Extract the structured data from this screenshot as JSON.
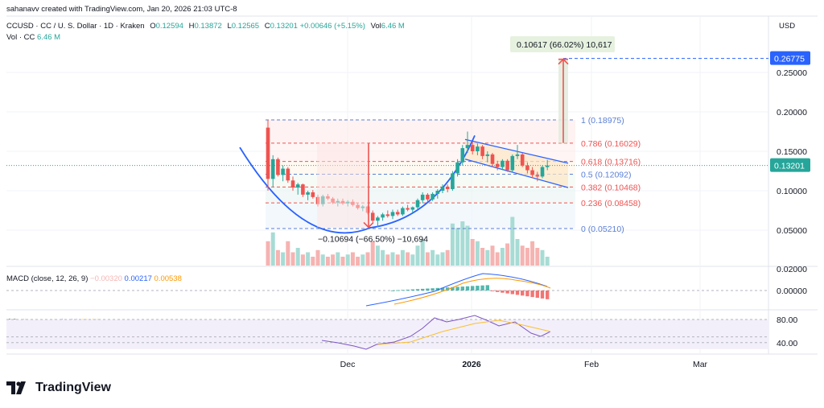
{
  "header": {
    "credit": "sahanavv created with TradingView.com, Jan 20, 2026 21:03 UTC-8",
    "symbol": "CCUSD · CC / U. S. Dollar · 1D · Kraken",
    "o_label": "O",
    "o_value": "0.12594",
    "h_label": "H",
    "h_value": "0.13872",
    "l_label": "L",
    "l_value": "0.12565",
    "c_label": "C",
    "c_value": "0.13201",
    "change": "+0.00646 (+5.15%)",
    "vol_label": "Vol",
    "vol_value": "6.46 M",
    "vol_row_label": "Vol · CC",
    "vol_row_value": "6.46 M",
    "currency": "USD"
  },
  "colors": {
    "up": "#26a69a",
    "down": "#ef5350",
    "curve": "#2962ff",
    "fib_red": "#ef5350",
    "fib_blue": "#5b7fd4",
    "target": "#2962ff",
    "macd": "#2962ff",
    "signal": "#ff9800",
    "rsi": "#7e57c2",
    "rsi_ma": "#fbc02d"
  },
  "chart_data": {
    "type": "candlestick",
    "x_axis": [
      "Dec",
      "2026",
      "Feb",
      "Mar"
    ],
    "y_axis": [
      "0.05000",
      "0.10000",
      "0.15000",
      "0.20000",
      "0.25000"
    ],
    "price_scale": [
      0.05,
      0.25
    ],
    "last_price": "0.13201",
    "target_price": "0.26775",
    "fib_levels": [
      {
        "label": "1 (0.18975)",
        "value": 0.18975
      },
      {
        "label": "0.786 (0.16029)",
        "value": 0.16029
      },
      {
        "label": "0.618 (0.13716)",
        "value": 0.13716
      },
      {
        "label": "0.5 (0.12092)",
        "value": 0.12092
      },
      {
        "label": "0.382 (0.10468)",
        "value": 0.10468
      },
      {
        "label": "0.236 (0.08458)",
        "value": 0.08458
      },
      {
        "label": "0 (0.05210)",
        "value": 0.0521
      }
    ],
    "measure_down": {
      "label": "−0.10694 (−66.50%) −10,694",
      "from": 0.1605,
      "to": 0.0536
    },
    "measure_up": {
      "label": "0.10617 (66.02%) 10,617",
      "from": 0.1605,
      "to": 0.2667
    },
    "candles": [
      [
        0.18,
        0.19,
        0.1,
        0.115
      ],
      [
        0.115,
        0.145,
        0.105,
        0.14
      ],
      [
        0.14,
        0.142,
        0.118,
        0.12
      ],
      [
        0.12,
        0.132,
        0.112,
        0.128
      ],
      [
        0.128,
        0.13,
        0.11,
        0.113
      ],
      [
        0.113,
        0.118,
        0.1,
        0.104
      ],
      [
        0.104,
        0.11,
        0.095,
        0.108
      ],
      [
        0.108,
        0.109,
        0.092,
        0.095
      ],
      [
        0.095,
        0.1,
        0.088,
        0.098
      ],
      [
        0.098,
        0.101,
        0.09,
        0.092
      ],
      [
        0.092,
        0.095,
        0.08,
        0.083
      ],
      [
        0.083,
        0.095,
        0.08,
        0.093
      ],
      [
        0.093,
        0.096,
        0.088,
        0.09
      ],
      [
        0.09,
        0.092,
        0.083,
        0.085
      ],
      [
        0.085,
        0.09,
        0.08,
        0.087
      ],
      [
        0.087,
        0.09,
        0.082,
        0.084
      ],
      [
        0.084,
        0.088,
        0.08,
        0.086
      ],
      [
        0.086,
        0.089,
        0.08,
        0.082
      ],
      [
        0.082,
        0.084,
        0.076,
        0.078
      ],
      [
        0.078,
        0.082,
        0.074,
        0.08
      ],
      [
        0.08,
        0.081,
        0.07,
        0.072
      ],
      [
        0.072,
        0.075,
        0.06,
        0.062
      ],
      [
        0.062,
        0.068,
        0.054,
        0.066
      ],
      [
        0.066,
        0.072,
        0.062,
        0.07
      ],
      [
        0.07,
        0.075,
        0.066,
        0.068
      ],
      [
        0.068,
        0.076,
        0.064,
        0.073
      ],
      [
        0.073,
        0.076,
        0.068,
        0.07
      ],
      [
        0.07,
        0.08,
        0.068,
        0.078
      ],
      [
        0.078,
        0.082,
        0.074,
        0.076
      ],
      [
        0.076,
        0.08,
        0.072,
        0.079
      ],
      [
        0.079,
        0.09,
        0.076,
        0.088
      ],
      [
        0.088,
        0.098,
        0.084,
        0.095
      ],
      [
        0.095,
        0.097,
        0.086,
        0.089
      ],
      [
        0.089,
        0.098,
        0.087,
        0.096
      ],
      [
        0.096,
        0.102,
        0.09,
        0.1
      ],
      [
        0.1,
        0.108,
        0.097,
        0.105
      ],
      [
        0.105,
        0.108,
        0.098,
        0.102
      ],
      [
        0.102,
        0.125,
        0.1,
        0.122
      ],
      [
        0.122,
        0.14,
        0.118,
        0.136
      ],
      [
        0.136,
        0.158,
        0.132,
        0.154
      ],
      [
        0.154,
        0.175,
        0.148,
        0.158
      ],
      [
        0.158,
        0.162,
        0.146,
        0.15
      ],
      [
        0.15,
        0.16,
        0.145,
        0.156
      ],
      [
        0.156,
        0.158,
        0.14,
        0.144
      ],
      [
        0.144,
        0.15,
        0.136,
        0.146
      ],
      [
        0.146,
        0.148,
        0.13,
        0.134
      ],
      [
        0.134,
        0.138,
        0.126,
        0.13
      ],
      [
        0.13,
        0.14,
        0.126,
        0.138
      ],
      [
        0.138,
        0.14,
        0.124,
        0.126
      ],
      [
        0.126,
        0.146,
        0.124,
        0.144
      ],
      [
        0.144,
        0.158,
        0.14,
        0.146
      ],
      [
        0.146,
        0.148,
        0.13,
        0.132
      ],
      [
        0.132,
        0.136,
        0.122,
        0.126
      ],
      [
        0.126,
        0.13,
        0.116,
        0.12
      ],
      [
        0.12,
        0.124,
        0.112,
        0.118
      ],
      [
        0.118,
        0.132,
        0.116,
        0.13
      ],
      [
        0.13,
        0.139,
        0.126,
        0.132
      ]
    ],
    "volumes": [
      0.55,
      0.75,
      0.35,
      0.3,
      0.55,
      0.3,
      0.4,
      0.25,
      0.3,
      0.2,
      0.35,
      0.25,
      0.2,
      0.25,
      0.3,
      0.2,
      0.25,
      0.3,
      0.2,
      0.25,
      0.3,
      0.55,
      0.45,
      0.35,
      0.25,
      0.3,
      0.25,
      0.35,
      0.3,
      0.25,
      0.45,
      0.6,
      0.3,
      0.35,
      0.25,
      0.3,
      0.35,
      0.95,
      0.85,
      1.0,
      0.9,
      0.6,
      0.55,
      0.4,
      0.35,
      0.45,
      0.3,
      0.4,
      0.5,
      1.1,
      0.6,
      0.45,
      0.4,
      0.55,
      0.4,
      0.35,
      0.2
    ],
    "macd": {
      "name": "MACD (close, 12, 26, 9)",
      "hist": "−0.00320",
      "macd": "0.00217",
      "signal": "0.00538",
      "zero": "0.00000",
      "top": "0.02000"
    },
    "rsi": {
      "name": "RSI (14, close)",
      "value": "52.98",
      "ma": "60.80",
      "upper": "80.00",
      "lower": "40.00"
    }
  }
}
